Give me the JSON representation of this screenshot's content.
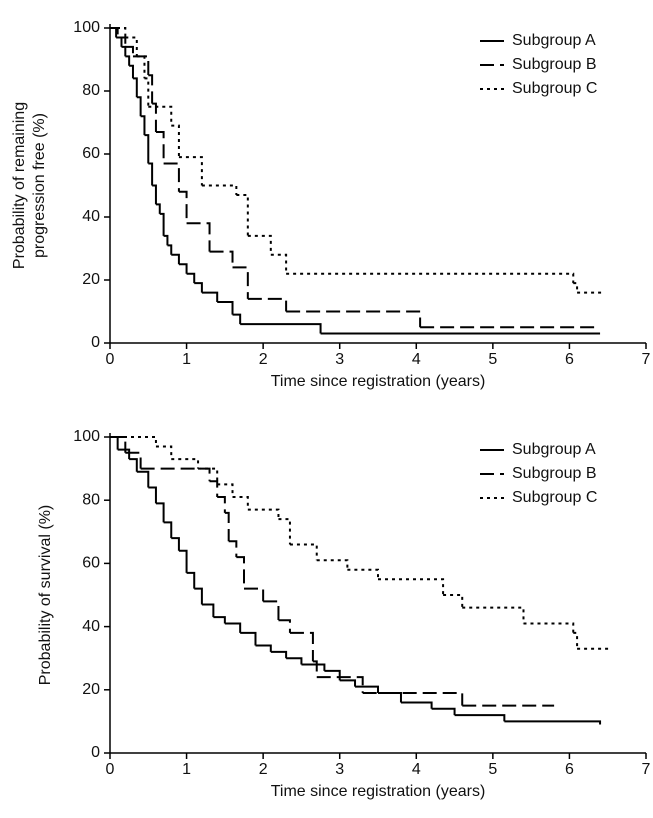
{
  "chart_data": [
    {
      "type": "step",
      "xlabel": "Time since registration (years)",
      "ylabel": [
        "Probability of remaining",
        "progression free (%)"
      ],
      "xlim": [
        0,
        7
      ],
      "ylim": [
        0,
        100
      ],
      "xticks": [
        0,
        1,
        2,
        3,
        4,
        5,
        6,
        7
      ],
      "yticks": [
        0,
        20,
        40,
        60,
        80,
        100
      ],
      "legend": "upper right",
      "series": [
        {
          "name": "Subgroup A",
          "color": "#000000",
          "dash": "solid",
          "x": [
            0,
            0.08,
            0.15,
            0.2,
            0.25,
            0.3,
            0.35,
            0.4,
            0.45,
            0.5,
            0.55,
            0.6,
            0.65,
            0.7,
            0.75,
            0.8,
            0.9,
            1.0,
            1.1,
            1.2,
            1.4,
            1.6,
            1.7,
            2.75,
            6.4
          ],
          "values": [
            100,
            97,
            94,
            91,
            88,
            84,
            78,
            72,
            66,
            57,
            50,
            44,
            41,
            34,
            31,
            28,
            25,
            22,
            19,
            16,
            13,
            9,
            6,
            3,
            3
          ]
        },
        {
          "name": "Subgroup B",
          "color": "#000000",
          "dash": "dashed",
          "x": [
            0,
            0.1,
            0.2,
            0.3,
            0.5,
            0.55,
            0.6,
            0.7,
            0.9,
            1.0,
            1.3,
            1.6,
            1.8,
            2.3,
            4.05,
            6.4
          ],
          "values": [
            100,
            97,
            94,
            91,
            85,
            76,
            67,
            57,
            48,
            38,
            29,
            24,
            14,
            10,
            5,
            5
          ]
        },
        {
          "name": "Subgroup C",
          "color": "#000000",
          "dash": "dotted",
          "x": [
            0,
            0.2,
            0.35,
            0.45,
            0.5,
            0.8,
            0.9,
            1.2,
            1.65,
            1.8,
            2.1,
            2.3,
            6.05,
            6.1,
            6.45
          ],
          "values": [
            100,
            97,
            91,
            84,
            75,
            69,
            59,
            50,
            47,
            34,
            28,
            22,
            19,
            16,
            16
          ]
        }
      ]
    },
    {
      "type": "step",
      "xlabel": "Time since registration (years)",
      "ylabel": [
        "Probability of survival (%)"
      ],
      "xlim": [
        0,
        7
      ],
      "ylim": [
        0,
        100
      ],
      "xticks": [
        0,
        1,
        2,
        3,
        4,
        5,
        6,
        7
      ],
      "yticks": [
        0,
        20,
        40,
        60,
        80,
        100
      ],
      "legend": "upper right",
      "series": [
        {
          "name": "Subgroup A",
          "color": "#000000",
          "dash": "solid",
          "x": [
            0,
            0.1,
            0.25,
            0.35,
            0.5,
            0.6,
            0.7,
            0.8,
            0.9,
            1.0,
            1.1,
            1.2,
            1.35,
            1.5,
            1.7,
            1.9,
            2.1,
            2.3,
            2.5,
            2.8,
            3.0,
            3.2,
            3.5,
            3.8,
            4.2,
            4.5,
            5.15,
            6.4
          ],
          "values": [
            100,
            96,
            93,
            89,
            84,
            79,
            73,
            68,
            64,
            57,
            52,
            47,
            43,
            41,
            38,
            34,
            32,
            30,
            28,
            26,
            23,
            21,
            19,
            16,
            14,
            12,
            10,
            9
          ]
        },
        {
          "name": "Subgroup B",
          "color": "#000000",
          "dash": "dashed",
          "x": [
            0,
            0.2,
            0.4,
            1.3,
            1.4,
            1.5,
            1.55,
            1.65,
            1.75,
            2.0,
            2.2,
            2.35,
            2.65,
            2.7,
            3.3,
            4.6,
            5.8
          ],
          "values": [
            100,
            95,
            90,
            86,
            81,
            76,
            67,
            62,
            52,
            48,
            42,
            38,
            29,
            24,
            19,
            15,
            15
          ]
        },
        {
          "name": "Subgroup C",
          "color": "#000000",
          "dash": "dotted",
          "x": [
            0,
            0.6,
            0.8,
            1.15,
            1.4,
            1.6,
            1.8,
            2.2,
            2.35,
            2.7,
            3.1,
            3.5,
            4.35,
            4.6,
            5.4,
            6.05,
            6.1,
            6.55
          ],
          "values": [
            100,
            97,
            93,
            90,
            85,
            81,
            77,
            74,
            66,
            61,
            58,
            55,
            50,
            46,
            41,
            38,
            33,
            33
          ]
        }
      ]
    }
  ]
}
